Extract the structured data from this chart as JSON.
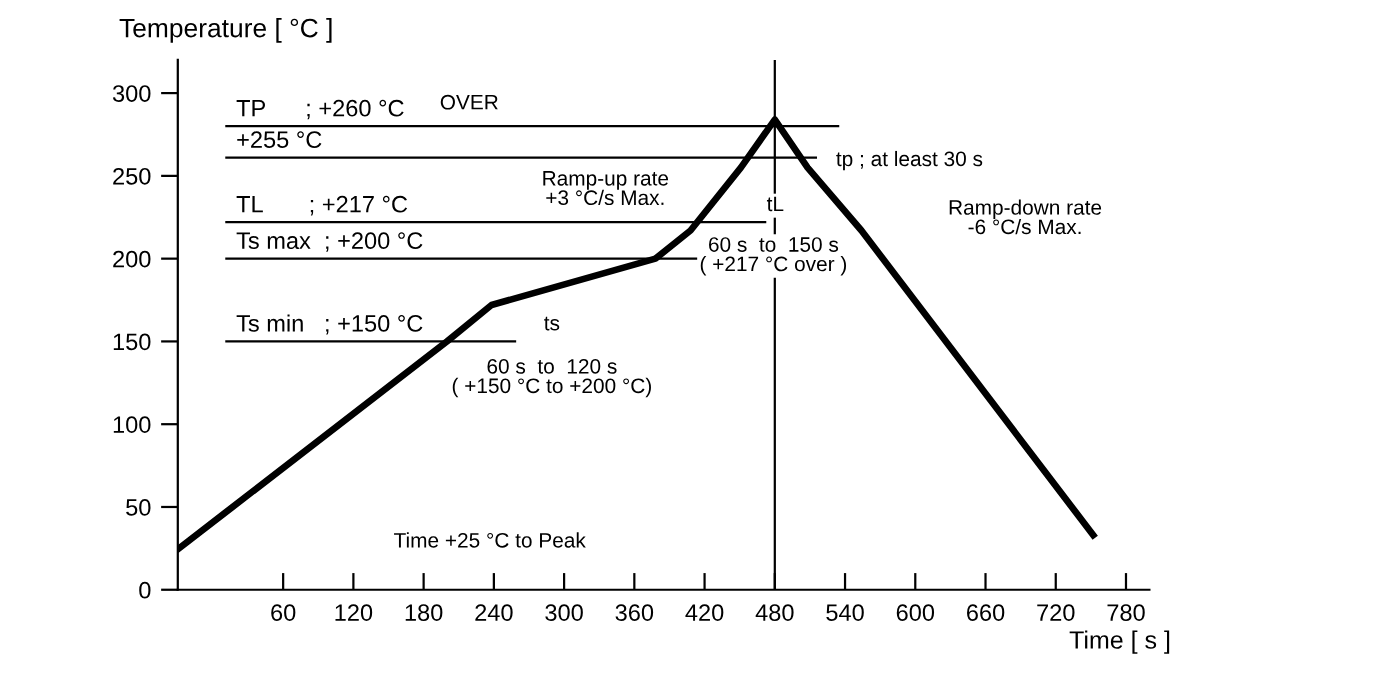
{
  "chart_data": {
    "type": "line",
    "xlabel": "Time [ s ]",
    "ylabel": "Temperature [ °C ]",
    "x": [
      -29,
      200,
      238,
      378,
      408,
      451,
      480,
      508,
      554,
      752
    ],
    "series": [
      {
        "color": "#000000",
        "values": [
          25,
          150,
          172,
          200,
          217,
          255,
          284,
          255,
          217,
          33
        ]
      }
    ],
    "xlim": [
      -30,
      800
    ],
    "ylim": [
      0,
      320
    ],
    "xticks": [
      60,
      120,
      180,
      240,
      300,
      360,
      420,
      480,
      540,
      600,
      660,
      720,
      780
    ],
    "yticks": [
      0,
      50,
      100,
      150,
      200,
      250,
      300
    ],
    "grid": false,
    "legend": false,
    "marker": "none",
    "line_style": "solid",
    "ref_lines": [
      {
        "axis": "y",
        "value": 280,
        "label": "TP      ; +260 °C"
      },
      {
        "axis": "y",
        "value": 261,
        "label": "+255 °C"
      },
      {
        "axis": "y",
        "value": 222,
        "label": "TL       ; +217 °C"
      },
      {
        "axis": "y",
        "value": 200,
        "label": "Ts max  ; +200 °C"
      },
      {
        "axis": "y",
        "value": 150,
        "label": "Ts min   ; +150 °C"
      },
      {
        "axis": "x",
        "value": 480,
        "label": null
      }
    ],
    "annotations": [
      "OVER",
      "Ramp-up rate\n+3 °C/s Max.",
      "tp ; at least 30 s",
      "tL",
      "60 s  to  150 s\n( +217 °C over )",
      "ts",
      "60 s  to  120 s\n( +150 °C to +200 °C)",
      "Ramp-down rate\n-6 °C/s Max.",
      "Time +25 °C to Peak"
    ]
  }
}
